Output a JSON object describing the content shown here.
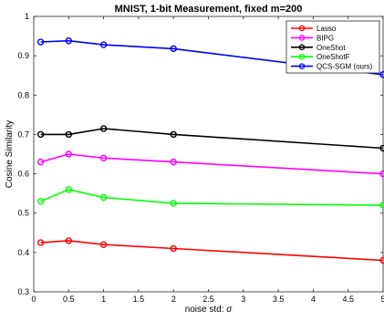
{
  "chart_data": {
    "type": "line",
    "title": "MNIST, 1-bit Measurement, fixed m=200",
    "xlabel_text": "noise std: ",
    "xlabel_symbol": "σ",
    "ylabel": "Cosine Similarity",
    "xlim": [
      0,
      5
    ],
    "ylim": [
      0.3,
      1
    ],
    "xticks": [
      0,
      0.5,
      1,
      1.5,
      2,
      2.5,
      3,
      3.5,
      4,
      4.5,
      5
    ],
    "xtick_labels": [
      "0",
      "0.5",
      "1",
      "1.5",
      "2",
      "2.5",
      "3",
      "3.5",
      "4",
      "4.5",
      "5"
    ],
    "yticks": [
      0.3,
      0.4,
      0.5,
      0.6,
      0.7,
      0.8,
      0.9,
      1
    ],
    "ytick_labels": [
      "0.3",
      "0.4",
      "0.5",
      "0.6",
      "0.7",
      "0.8",
      "0.9",
      "1"
    ],
    "x": [
      0.1,
      0.5,
      1,
      2,
      5
    ],
    "grid": false,
    "legend_position": "top-right",
    "series": [
      {
        "name": "Lasso",
        "color": "#ff0000",
        "values": [
          0.425,
          0.43,
          0.42,
          0.41,
          0.38
        ]
      },
      {
        "name": "BIPG",
        "color": "#ff00ff",
        "values": [
          0.63,
          0.65,
          0.64,
          0.63,
          0.6
        ]
      },
      {
        "name": "OneShot",
        "color": "#000000",
        "values": [
          0.7,
          0.7,
          0.715,
          0.7,
          0.665
        ]
      },
      {
        "name": "OneShotF",
        "color": "#00ff00",
        "values": [
          0.53,
          0.56,
          0.54,
          0.525,
          0.52
        ]
      },
      {
        "name": "QCS-SGM (ours)",
        "color": "#0000ff",
        "values": [
          0.935,
          0.938,
          0.928,
          0.918,
          0.852
        ]
      }
    ]
  }
}
